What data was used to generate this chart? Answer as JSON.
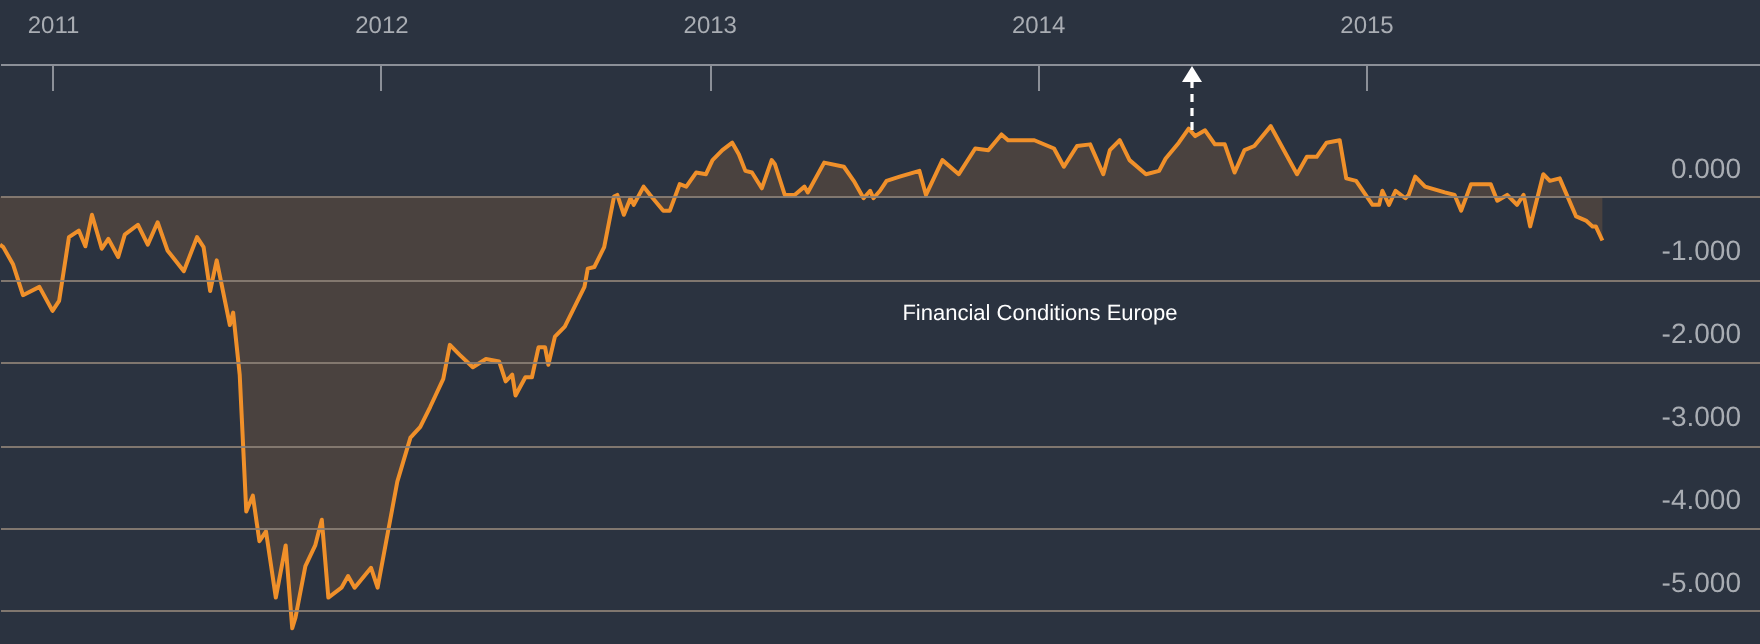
{
  "chart_data": {
    "type": "area",
    "x": [
      2010.84,
      2010.85,
      2010.88,
      2010.91,
      2010.96,
      2011.0,
      2011.02,
      2011.05,
      2011.08,
      2011.1,
      2011.12,
      2011.15,
      2011.17,
      2011.2,
      2011.22,
      2011.26,
      2011.29,
      2011.32,
      2011.35,
      2011.4,
      2011.44,
      2011.46,
      2011.48,
      2011.5,
      2011.54,
      2011.55,
      2011.57,
      2011.59,
      2011.61,
      2011.63,
      2011.65,
      2011.68,
      2011.71,
      2011.73,
      2011.74,
      2011.77,
      2011.8,
      2011.82,
      2011.84,
      2011.88,
      2011.9,
      2011.92,
      2011.97,
      2011.99,
      2012.05,
      2012.09,
      2012.12,
      2012.15,
      2012.19,
      2012.21,
      2012.24,
      2012.28,
      2012.32,
      2012.36,
      2012.38,
      2012.4,
      2012.41,
      2012.44,
      2012.46,
      2012.48,
      2012.5,
      2012.51,
      2012.53,
      2012.56,
      2012.62,
      2012.63,
      2012.65,
      2012.68,
      2012.71,
      2012.72,
      2012.74,
      2012.76,
      2012.77,
      2012.8,
      2012.82,
      2012.86,
      2012.88,
      2012.91,
      2012.93,
      2012.96,
      2012.99,
      2013.01,
      2013.04,
      2013.07,
      2013.09,
      2013.11,
      2013.13,
      2013.16,
      2013.19,
      2013.2,
      2013.23,
      2013.26,
      2013.29,
      2013.3,
      2013.35,
      2013.41,
      2013.44,
      2013.47,
      2013.49,
      2013.5,
      2013.52,
      2013.54,
      2013.58,
      2013.64,
      2013.66,
      2013.71,
      2013.76,
      2013.81,
      2013.85,
      2013.89,
      2013.91,
      2013.99,
      2014.05,
      2014.08,
      2014.12,
      2014.16,
      2014.2,
      2014.22,
      2014.25,
      2014.28,
      2014.33,
      2014.37,
      2014.39,
      2014.43,
      2014.46,
      2014.48,
      2014.51,
      2014.54,
      2014.57,
      2014.6,
      2014.63,
      2014.66,
      2014.71,
      2014.75,
      2014.79,
      2014.82,
      2014.85,
      2014.88,
      2014.92,
      2014.94,
      2014.97,
      2015.02,
      2015.04,
      2015.05,
      2015.07,
      2015.09,
      2015.12,
      2015.13,
      2015.15,
      2015.18,
      2015.24,
      2015.27,
      2015.29,
      2015.32,
      2015.38,
      2015.4,
      2015.43,
      2015.46,
      2015.48,
      2015.5,
      2015.54,
      2015.56,
      2015.59,
      2015.64,
      2015.67,
      2015.69,
      2015.7,
      2015.72
    ],
    "series": [
      {
        "name": "Financial Conditions Europe",
        "color": "#f0902a",
        "values": [
          -0.58,
          -0.61,
          -0.82,
          -1.19,
          -1.09,
          -1.38,
          -1.26,
          -0.49,
          -0.41,
          -0.6,
          -0.22,
          -0.63,
          -0.51,
          -0.73,
          -0.46,
          -0.34,
          -0.58,
          -0.31,
          -0.65,
          -0.9,
          -0.49,
          -0.61,
          -1.14,
          -0.77,
          -1.55,
          -1.4,
          -2.15,
          -3.8,
          -3.61,
          -4.16,
          -4.04,
          -4.84,
          -4.21,
          -5.21,
          -5.08,
          -4.46,
          -4.21,
          -3.9,
          -4.84,
          -4.72,
          -4.58,
          -4.72,
          -4.48,
          -4.72,
          -3.44,
          -2.91,
          -2.78,
          -2.54,
          -2.2,
          -1.79,
          -1.91,
          -2.06,
          -1.96,
          -1.99,
          -2.23,
          -2.15,
          -2.4,
          -2.18,
          -2.18,
          -1.82,
          -1.82,
          -2.03,
          -1.69,
          -1.57,
          -1.09,
          -0.87,
          -0.85,
          -0.61,
          0,
          0.02,
          -0.22,
          -0.02,
          -0.1,
          0.12,
          0.02,
          -0.17,
          -0.17,
          0.15,
          0.12,
          0.29,
          0.27,
          0.44,
          0.56,
          0.65,
          0.51,
          0.31,
          0.29,
          0.1,
          0.44,
          0.39,
          0.02,
          0.02,
          0.12,
          0.05,
          0.41,
          0.36,
          0.19,
          -0.02,
          0.07,
          -0.02,
          0.07,
          0.19,
          0.24,
          0.31,
          0.02,
          0.44,
          0.27,
          0.58,
          0.56,
          0.75,
          0.68,
          0.68,
          0.58,
          0.36,
          0.61,
          0.63,
          0.27,
          0.56,
          0.68,
          0.44,
          0.27,
          0.31,
          0.46,
          0.65,
          0.82,
          0.73,
          0.8,
          0.63,
          0.63,
          0.29,
          0.56,
          0.61,
          0.85,
          0.56,
          0.27,
          0.48,
          0.48,
          0.65,
          0.68,
          0.22,
          0.19,
          -0.1,
          -0.1,
          0.07,
          -0.1,
          0.07,
          -0.02,
          0.02,
          0.24,
          0.12,
          0.05,
          0.02,
          -0.17,
          0.15,
          0.15,
          -0.05,
          0.02,
          -0.1,
          0.02,
          -0.36,
          0.27,
          0.19,
          0.22,
          -0.24,
          -0.29,
          -0.36,
          -0.36,
          -0.53
        ]
      }
    ],
    "xlim": [
      2010.84,
      2016.2
    ],
    "xticks": [
      2011,
      2012,
      2013,
      2014,
      2015
    ],
    "ylim": [
      -5.4,
      1.6
    ],
    "yticks": [
      {
        "value": -5,
        "label": "-5.000"
      },
      {
        "value": -4,
        "label": "-4.000"
      },
      {
        "value": -3,
        "label": "-3.000"
      },
      {
        "value": -2,
        "label": "-2.000"
      },
      {
        "value": -1,
        "label": "-1.000"
      },
      {
        "value": 0,
        "label": "0.000"
      }
    ],
    "grid": "y"
  }
}
